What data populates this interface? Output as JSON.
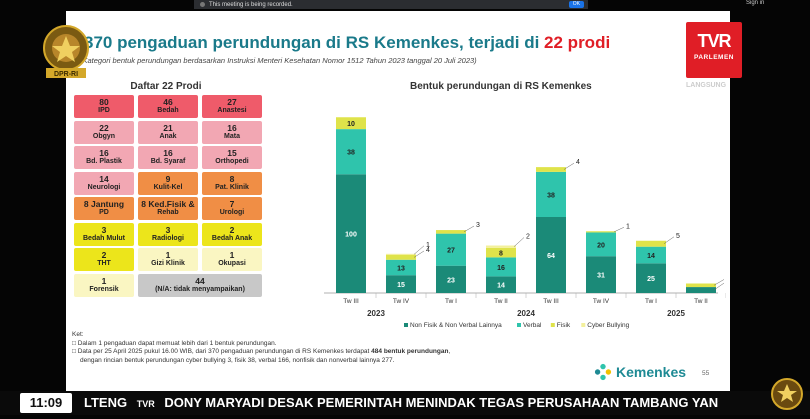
{
  "recording_notice": "This meeting is being recorded.",
  "recording_ok": "OK",
  "signin": "Sign in",
  "slide": {
    "title_pre": "370 pengaduan perundungan di RS Kemenkes, terjadi di ",
    "title_red": "22 prodi",
    "subtitle": "(Kategori bentuk perundungan berdasarkan Instruksi Menteri Kesehatan Nomor 1512 Tahun 2023 tanggal 20 Juli 2023)",
    "daftar_title": "Daftar 22 Prodi",
    "prodi": [
      {
        "n": "80",
        "label": "IPD",
        "color": "#ef5b6a"
      },
      {
        "n": "46",
        "label": "Bedah",
        "color": "#ef5b6a"
      },
      {
        "n": "27",
        "label": "Anastesi",
        "color": "#ef5b6a"
      },
      {
        "n": "22",
        "label": "Obgyn",
        "color": "#f2a7b3"
      },
      {
        "n": "21",
        "label": "Anak",
        "color": "#f2a7b3"
      },
      {
        "n": "16",
        "label": "Mata",
        "color": "#f2a7b3"
      },
      {
        "n": "16",
        "label": "Bd. Plastik",
        "color": "#f2a7b3"
      },
      {
        "n": "16",
        "label": "Bd. Syaraf",
        "color": "#f2a7b3"
      },
      {
        "n": "15",
        "label": "Orthopedi",
        "color": "#f2a7b3"
      },
      {
        "n": "14",
        "label": "Neurologi",
        "color": "#f2a7b3"
      },
      {
        "n": "9",
        "label": "Kulit-Kel",
        "color": "#f08e45"
      },
      {
        "n": "8",
        "label": "Pat. Klinik",
        "color": "#f08e45"
      },
      {
        "n": "8 Jantung",
        "label": "PD",
        "color": "#f08e45"
      },
      {
        "n": "8 Ked.Fisik &",
        "label": "Rehab",
        "color": "#f08e45"
      },
      {
        "n": "7",
        "label": "Urologi",
        "color": "#f08e45"
      },
      {
        "n": "3",
        "label": "Bedah Mulut",
        "color": "#ece51b"
      },
      {
        "n": "3",
        "label": "Radiologi",
        "color": "#ece51b"
      },
      {
        "n": "2",
        "label": "Bedah Anak",
        "color": "#ece51b"
      },
      {
        "n": "2",
        "label": "THT",
        "color": "#ece51b"
      },
      {
        "n": "1",
        "label": "Gizi Klinik",
        "color": "#faf6c2"
      },
      {
        "n": "1",
        "label": "Okupasi",
        "color": "#faf6c2"
      },
      {
        "n": "1",
        "label": "Forensik",
        "color": "#faf6c2"
      },
      {
        "n": "44",
        "label": "(N/A: tidak menyampaikan)",
        "color": "#c8c8c8"
      }
    ],
    "notes_header": "Ket:",
    "note1": "Dalam 1 pengaduan dapat memuat lebih dari 1 bentuk perundungan.",
    "note2_pre": "Data per 25 April 2025 pukul 16.00 WIB, dari 370 pengaduan perundungan di RS Kemenkes terdapat ",
    "note2_bold": "484 bentuk perundungan",
    "note2_post": ",",
    "note3": "dengan rincian bentuk perundungan cyber bullying 3, fisik 38, verbal 166, nonfisik dan nonverbal lainnya 277.",
    "brand": "Kemenkes",
    "page": "55"
  },
  "chart_data": {
    "type": "bar",
    "stacked": true,
    "title": "Bentuk perundungan di RS Kemenkes",
    "categories": [
      "Tw III",
      "Tw IV",
      "Tw I",
      "Tw II",
      "Tw III",
      "Tw IV",
      "Tw I",
      "Tw II"
    ],
    "years": [
      {
        "label": "2023",
        "from": 0,
        "to": 1
      },
      {
        "label": "2024",
        "from": 2,
        "to": 5
      },
      {
        "label": "2025",
        "from": 6,
        "to": 7
      }
    ],
    "series": [
      {
        "name": "Non Fisik & Non Verbal Lainnya",
        "color": "#1b8a78",
        "values": [
          100,
          15,
          23,
          14,
          64,
          31,
          25,
          5
        ]
      },
      {
        "name": "Verbal",
        "color": "#2fc4ac",
        "values": [
          38,
          13,
          27,
          16,
          38,
          20,
          14,
          0
        ]
      },
      {
        "name": "Fisik",
        "color": "#dfe34a",
        "values": [
          10,
          4,
          3,
          8,
          4,
          1,
          5,
          3
        ]
      },
      {
        "name": "Cyber Bullying",
        "color": "#f3f09c",
        "values": [
          0,
          1,
          0,
          2,
          0,
          0,
          0,
          0
        ]
      }
    ],
    "ylim": [
      0,
      160
    ]
  },
  "broadcast": {
    "logo_big": "TVR",
    "logo_small": "PARLEMEN",
    "live": "LANGSUNG",
    "clock": "11:09",
    "ticker_pre": "LTENG",
    "ticker_logo": "TVR",
    "ticker_main": "DONY MARYADI DESAK PEMERINTAH MENINDAK TEGAS PERUSAHAAN TAMBANG YAN",
    "dpr_text": "DPR-RI"
  }
}
